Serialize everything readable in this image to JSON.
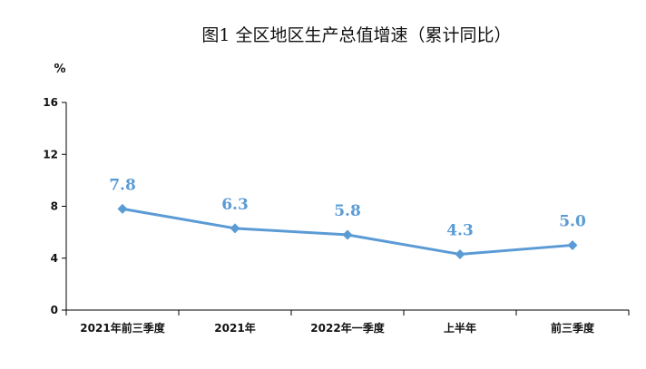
{
  "chart_data": {
    "type": "line",
    "title": "图1   全区地区生产总值增速（累计同比）",
    "ylabel": "%",
    "categories": [
      "2021年前三季度",
      "2021年",
      "2022年一季度",
      "上半年",
      "前三季度"
    ],
    "series": [
      {
        "values": [
          7.8,
          6.3,
          5.8,
          4.3,
          5.0
        ],
        "labels": [
          "7.8",
          "6.3",
          "5.8",
          "4.3",
          "5.0"
        ]
      }
    ],
    "ylim": [
      0,
      16
    ],
    "yticks": [
      "0",
      "4",
      "8",
      "12",
      "16"
    ],
    "grid": false,
    "legend": "none",
    "colors": {
      "line": "#5b9bd5",
      "label": "#5b9bd5",
      "axis": "#000000"
    }
  }
}
